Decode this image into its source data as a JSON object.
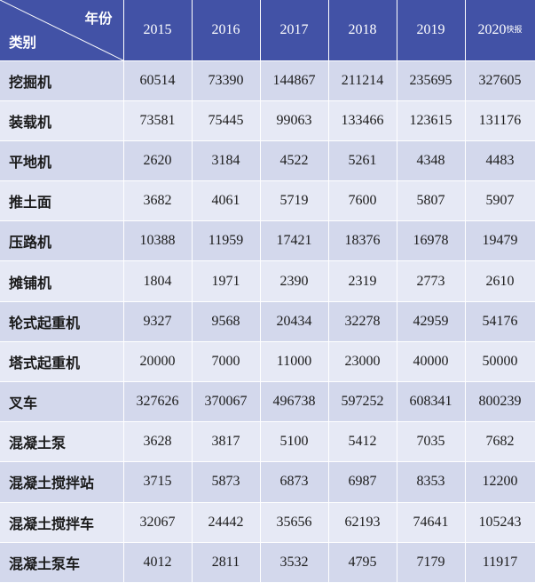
{
  "header": {
    "corner_year": "年份",
    "corner_category": "类别",
    "years": [
      "2015",
      "2016",
      "2017",
      "2018",
      "2019",
      "2020"
    ],
    "last_year_note": "快报"
  },
  "rows": [
    {
      "category": "挖掘机",
      "values": [
        "60514",
        "73390",
        "144867",
        "211214",
        "235695",
        "327605"
      ]
    },
    {
      "category": "装载机",
      "values": [
        "73581",
        "75445",
        "99063",
        "133466",
        "123615",
        "131176"
      ]
    },
    {
      "category": "平地机",
      "values": [
        "2620",
        "3184",
        "4522",
        "5261",
        "4348",
        "4483"
      ]
    },
    {
      "category": "推土面",
      "values": [
        "3682",
        "4061",
        "5719",
        "7600",
        "5807",
        "5907"
      ]
    },
    {
      "category": "压路机",
      "values": [
        "10388",
        "11959",
        "17421",
        "18376",
        "16978",
        "19479"
      ]
    },
    {
      "category": "摊铺机",
      "values": [
        "1804",
        "1971",
        "2390",
        "2319",
        "2773",
        "2610"
      ]
    },
    {
      "category": "轮式起重机",
      "values": [
        "9327",
        "9568",
        "20434",
        "32278",
        "42959",
        "54176"
      ]
    },
    {
      "category": "塔式起重机",
      "values": [
        "20000",
        "7000",
        "11000",
        "23000",
        "40000",
        "50000"
      ]
    },
    {
      "category": "叉车",
      "values": [
        "327626",
        "370067",
        "496738",
        "597252",
        "608341",
        "800239"
      ]
    },
    {
      "category": "混凝土泵",
      "values": [
        "3628",
        "3817",
        "5100",
        "5412",
        "7035",
        "7682"
      ]
    },
    {
      "category": "混凝土搅拌站",
      "values": [
        "3715",
        "5873",
        "6873",
        "6987",
        "8353",
        "12200"
      ]
    },
    {
      "category": "混凝土搅拌车",
      "values": [
        "32067",
        "24442",
        "35656",
        "62193",
        "74641",
        "105243"
      ]
    },
    {
      "category": "混凝土泵车",
      "values": [
        "4012",
        "2811",
        "3532",
        "4795",
        "7179",
        "11917"
      ]
    }
  ],
  "colors": {
    "header_bg": "#4252a6",
    "row_odd_bg": "#d3d8ec",
    "row_even_bg": "#e6e9f5"
  }
}
